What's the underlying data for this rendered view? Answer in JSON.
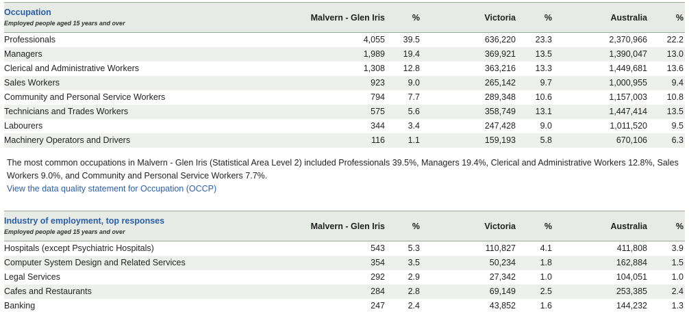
{
  "occupation": {
    "title": "Occupation",
    "subtitle": "Employed people aged 15 years and over",
    "columns": [
      "Malvern - Glen Iris",
      "%",
      "Victoria",
      "%",
      "Australia",
      "%"
    ],
    "rows": [
      {
        "label": "Professionals",
        "v": [
          "4,055",
          "39.5",
          "636,220",
          "23.3",
          "2,370,966",
          "22.2"
        ]
      },
      {
        "label": "Managers",
        "v": [
          "1,989",
          "19.4",
          "369,921",
          "13.5",
          "1,390,047",
          "13.0"
        ]
      },
      {
        "label": "Clerical and Administrative Workers",
        "v": [
          "1,308",
          "12.8",
          "363,216",
          "13.3",
          "1,449,681",
          "13.6"
        ]
      },
      {
        "label": "Sales Workers",
        "v": [
          "923",
          "9.0",
          "265,142",
          "9.7",
          "1,000,955",
          "9.4"
        ]
      },
      {
        "label": "Community and Personal Service Workers",
        "v": [
          "794",
          "7.7",
          "289,348",
          "10.6",
          "1,157,003",
          "10.8"
        ]
      },
      {
        "label": "Technicians and Trades Workers",
        "v": [
          "575",
          "5.6",
          "358,749",
          "13.1",
          "1,447,414",
          "13.5"
        ]
      },
      {
        "label": "Labourers",
        "v": [
          "344",
          "3.4",
          "247,428",
          "9.0",
          "1,011,520",
          "9.5"
        ]
      },
      {
        "label": "Machinery Operators and Drivers",
        "v": [
          "116",
          "1.1",
          "159,193",
          "5.8",
          "670,106",
          "6.3"
        ]
      }
    ],
    "summary": "The most common occupations in Malvern - Glen Iris (Statistical Area Level 2) included Professionals 39.5%, Managers 19.4%, Clerical and Administrative Workers 12.8%, Sales Workers 9.0%, and Community and Personal Service Workers 7.7%.",
    "link": "View the data quality statement for Occupation (OCCP)"
  },
  "industry": {
    "title": "Industry of employment, top responses",
    "subtitle": "Employed people aged 15 years and over",
    "columns": [
      "Malvern - Glen Iris",
      "%",
      "Victoria",
      "%",
      "Australia",
      "%"
    ],
    "rows": [
      {
        "label": "Hospitals (except Psychiatric Hospitals)",
        "v": [
          "543",
          "5.3",
          "110,827",
          "4.1",
          "411,808",
          "3.9"
        ]
      },
      {
        "label": "Computer System Design and Related Services",
        "v": [
          "354",
          "3.5",
          "50,234",
          "1.8",
          "162,884",
          "1.5"
        ]
      },
      {
        "label": "Legal Services",
        "v": [
          "292",
          "2.9",
          "27,342",
          "1.0",
          "104,051",
          "1.0"
        ]
      },
      {
        "label": "Cafes and Restaurants",
        "v": [
          "284",
          "2.8",
          "69,149",
          "2.5",
          "253,385",
          "2.4"
        ]
      },
      {
        "label": "Banking",
        "v": [
          "247",
          "2.4",
          "43,852",
          "1.6",
          "144,232",
          "1.3"
        ]
      }
    ]
  }
}
